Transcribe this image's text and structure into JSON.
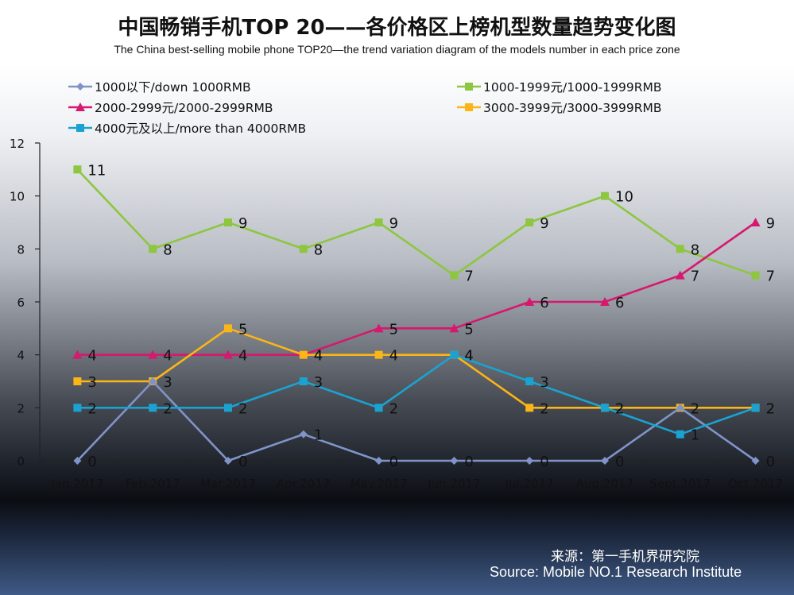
{
  "chart_data": {
    "type": "line",
    "title": "中国畅销手机TOP 20——各价格区上榜机型数量趋势变化图",
    "subtitle": "The China best-selling mobile phone TOP20—the trend variation diagram of the models number in each price zone",
    "categories": [
      "Jan.2017",
      "Feb.2017",
      "Mar.2017",
      "Apr.2017",
      "May.2017",
      "Jun.2017",
      "Jul.2017",
      "Aug.2017",
      "Sept.2017",
      "Oct.2017"
    ],
    "ylim": [
      0,
      12
    ],
    "yticks": [
      "0",
      "2",
      "4",
      "6",
      "8",
      "10",
      "12"
    ],
    "grid": false,
    "legend": "top",
    "series": [
      {
        "name": "1000以下/down 1000RMB",
        "color": "#8094c8",
        "marker": "diamond",
        "values": [
          0,
          3,
          0,
          1,
          0,
          0,
          0,
          0,
          2,
          0
        ],
        "labels": [
          "0",
          "",
          "0",
          "1",
          "0",
          "0",
          "0",
          "0",
          "",
          "0"
        ]
      },
      {
        "name": "1000-1999元/1000-1999RMB",
        "color": "#8dc63f",
        "marker": "square",
        "values": [
          11,
          8,
          9,
          8,
          9,
          7,
          9,
          10,
          8,
          7
        ],
        "labels": [
          "11",
          "8",
          "9",
          "8",
          "9",
          "7",
          "9",
          "10",
          "8",
          "7"
        ]
      },
      {
        "name": "2000-2999元/2000-2999RMB",
        "color": "#d6186e",
        "marker": "triangle",
        "values": [
          4,
          4,
          4,
          4,
          5,
          5,
          6,
          6,
          7,
          9
        ],
        "labels": [
          "4",
          "4",
          "4",
          "4",
          "5",
          "5",
          "6",
          "6",
          "7",
          "9"
        ]
      },
      {
        "name": "3000-3999元/3000-3999RMB",
        "color": "#fbb516",
        "marker": "square",
        "values": [
          3,
          3,
          5,
          4,
          4,
          4,
          2,
          2,
          2,
          2
        ],
        "labels": [
          "3",
          "3",
          "5",
          "4",
          "4",
          "4",
          "2",
          "2",
          "2",
          "2"
        ]
      },
      {
        "name": "4000元及以上/more than 4000RMB",
        "color": "#1aa3d1",
        "marker": "square",
        "values": [
          2,
          2,
          2,
          3,
          2,
          4,
          3,
          2,
          1,
          2
        ],
        "labels": [
          "2",
          "2",
          "2",
          "3",
          "2",
          "4",
          "3",
          "2",
          "1",
          "2"
        ]
      }
    ]
  },
  "source": {
    "cn": "来源：第一手机界研究院",
    "en": "Source: Mobile NO.1 Research Institute"
  }
}
